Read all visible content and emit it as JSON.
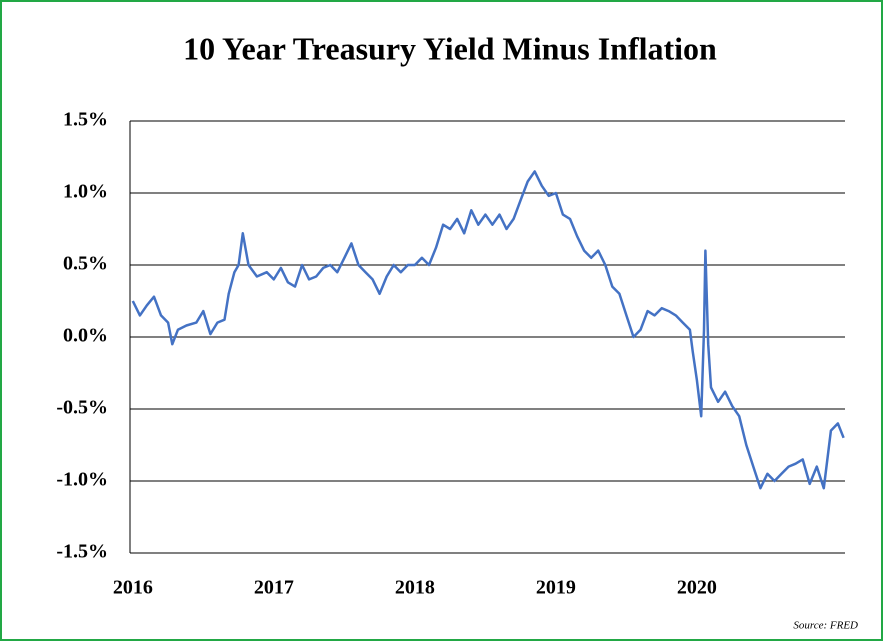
{
  "chart_data": {
    "type": "line",
    "title": "10 Year Treasury Yield Minus Inflation",
    "source": "Source: FRED",
    "xlim": [
      2015.98,
      2021.05
    ],
    "xticks": [
      2016,
      2017,
      2018,
      2019,
      2020
    ],
    "ylim": [
      -1.5,
      1.5
    ],
    "yticks": [
      {
        "value": -1.5,
        "label": "-1.5%"
      },
      {
        "value": -1.0,
        "label": "-1.0%"
      },
      {
        "value": -0.5,
        "label": "-0.5%"
      },
      {
        "value": 0.0,
        "label": "0.0%"
      },
      {
        "value": 0.5,
        "label": "0.5%"
      },
      {
        "value": 1.0,
        "label": "1.0%"
      },
      {
        "value": 1.5,
        "label": "1.5%"
      }
    ],
    "grid": true,
    "series": [
      {
        "color": "#4472c4",
        "x": [
          2016.0,
          2016.05,
          2016.1,
          2016.15,
          2016.2,
          2016.25,
          2016.28,
          2016.32,
          2016.38,
          2016.45,
          2016.5,
          2016.55,
          2016.6,
          2016.65,
          2016.68,
          2016.72,
          2016.75,
          2016.78,
          2016.82,
          2016.88,
          2016.95,
          2017.0,
          2017.05,
          2017.1,
          2017.15,
          2017.2,
          2017.25,
          2017.3,
          2017.35,
          2017.4,
          2017.45,
          2017.5,
          2017.55,
          2017.6,
          2017.65,
          2017.7,
          2017.75,
          2017.8,
          2017.85,
          2017.9,
          2017.95,
          2018.0,
          2018.05,
          2018.1,
          2018.15,
          2018.2,
          2018.25,
          2018.3,
          2018.35,
          2018.4,
          2018.45,
          2018.5,
          2018.55,
          2018.6,
          2018.65,
          2018.7,
          2018.75,
          2018.8,
          2018.85,
          2018.9,
          2018.95,
          2019.0,
          2019.05,
          2019.1,
          2019.15,
          2019.2,
          2019.25,
          2019.3,
          2019.35,
          2019.4,
          2019.45,
          2019.5,
          2019.55,
          2019.6,
          2019.65,
          2019.7,
          2019.75,
          2019.8,
          2019.85,
          2019.9,
          2019.95,
          2019.97,
          2020.0,
          2020.03,
          2020.05,
          2020.06,
          2020.08,
          2020.1,
          2020.15,
          2020.2,
          2020.25,
          2020.3,
          2020.35,
          2020.4,
          2020.45,
          2020.5,
          2020.55,
          2020.6,
          2020.65,
          2020.7,
          2020.75,
          2020.8,
          2020.85,
          2020.9,
          2020.95,
          2021.0,
          2021.04
        ],
        "values": [
          0.25,
          0.15,
          0.22,
          0.28,
          0.15,
          0.1,
          -0.05,
          0.05,
          0.08,
          0.1,
          0.18,
          0.02,
          0.1,
          0.12,
          0.3,
          0.45,
          0.5,
          0.72,
          0.5,
          0.42,
          0.45,
          0.4,
          0.48,
          0.38,
          0.35,
          0.5,
          0.4,
          0.42,
          0.48,
          0.5,
          0.45,
          0.55,
          0.65,
          0.5,
          0.45,
          0.4,
          0.3,
          0.42,
          0.5,
          0.45,
          0.5,
          0.5,
          0.55,
          0.5,
          0.62,
          0.78,
          0.75,
          0.82,
          0.72,
          0.88,
          0.78,
          0.85,
          0.78,
          0.85,
          0.75,
          0.82,
          0.95,
          1.08,
          1.15,
          1.05,
          0.98,
          1.0,
          0.85,
          0.82,
          0.7,
          0.6,
          0.55,
          0.6,
          0.5,
          0.35,
          0.3,
          0.15,
          0.0,
          0.05,
          0.18,
          0.15,
          0.2,
          0.18,
          0.15,
          0.1,
          0.05,
          -0.1,
          -0.3,
          -0.55,
          0.05,
          0.6,
          -0.05,
          -0.35,
          -0.45,
          -0.38,
          -0.48,
          -0.55,
          -0.75,
          -0.9,
          -1.05,
          -0.95,
          -1.0,
          -0.95,
          -0.9,
          -0.88,
          -0.85,
          -1.02,
          -0.9,
          -1.05,
          -0.65,
          -0.6,
          -0.7
        ]
      }
    ]
  }
}
